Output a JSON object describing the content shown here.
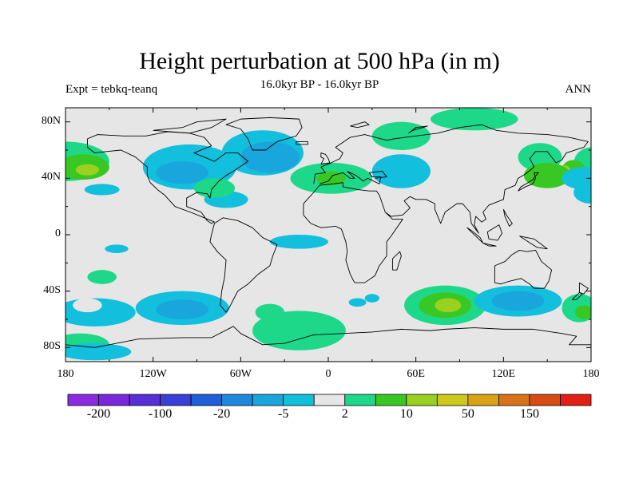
{
  "title": "Height perturbation at 500 hPa (in m)",
  "subtitle": "16.0kyr BP - 16.0kyr BP",
  "left_label": "Expt = tebkq-teanq",
  "right_label": "ANN",
  "lat_ticks": [
    "80N",
    "40N",
    "0",
    "40S",
    "80S"
  ],
  "lon_ticks": [
    "180",
    "120W",
    "60W",
    "0",
    "60E",
    "120E",
    "180"
  ],
  "colorbar": {
    "colors": [
      "#8a2be2",
      "#7a27dc",
      "#5a2ed6",
      "#3a3fd8",
      "#1f5fd8",
      "#1e88de",
      "#19a6dc",
      "#12bfdc",
      "#e6e6e6",
      "#1ed889",
      "#39c823",
      "#9bd020",
      "#cfc81c",
      "#d9a315",
      "#d9731a",
      "#d84b14",
      "#e11f14"
    ],
    "labels": [
      "-200",
      "-100",
      "-20",
      "-5",
      "2",
      "10",
      "50",
      "150"
    ]
  },
  "chart_data": {
    "type": "map-contour",
    "title": "Height perturbation at 500 hPa (in m)",
    "subtitle": "16.0kyr BP - 16.0kyr BP",
    "variable": "500 hPa geopotential height perturbation",
    "units": "m",
    "experiment": "tebkq-teanq",
    "season": "ANN",
    "x_range": [
      -180,
      180
    ],
    "y_range": [
      -90,
      90
    ],
    "levels": [
      -200,
      -100,
      -20,
      -5,
      2,
      10,
      50,
      150
    ],
    "regions": [
      {
        "name": "north-pacific-positive",
        "lon": -165,
        "lat": 45,
        "sign": "positive",
        "max_level": "50"
      },
      {
        "name": "north-america-negative",
        "lon": -90,
        "lat": 48,
        "sign": "negative",
        "max_level": "-20"
      },
      {
        "name": "north-atlantic-negative",
        "lon": -40,
        "lat": 55,
        "sign": "negative",
        "max_level": "-20"
      },
      {
        "name": "eastern-us-positive",
        "lon": -75,
        "lat": 30,
        "sign": "positive",
        "max_level": "10"
      },
      {
        "name": "europe-positive",
        "lon": 0,
        "lat": 40,
        "sign": "positive",
        "max_level": "10"
      },
      {
        "name": "siberia-negative",
        "lon": 55,
        "lat": 40,
        "sign": "negative",
        "max_level": "-5"
      },
      {
        "name": "south-indian-ocean-positive",
        "lon": 80,
        "lat": -50,
        "sign": "positive",
        "max_level": "50"
      },
      {
        "name": "southern-pacific-negative",
        "lon": -100,
        "lat": -55,
        "sign": "negative",
        "max_level": "-20"
      },
      {
        "name": "antarctic-atlantic-positive",
        "lon": -10,
        "lat": -70,
        "sign": "positive",
        "max_level": "10"
      },
      {
        "name": "south-australia-negative",
        "lon": 130,
        "lat": -45,
        "sign": "negative",
        "max_level": "-20"
      }
    ]
  }
}
